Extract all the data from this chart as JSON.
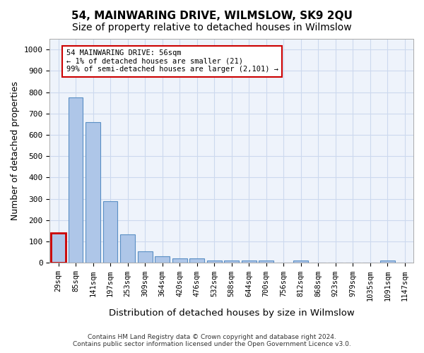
{
  "title": "54, MAINWARING DRIVE, WILMSLOW, SK9 2QU",
  "subtitle": "Size of property relative to detached houses in Wilmslow",
  "xlabel": "Distribution of detached houses by size in Wilmslow",
  "ylabel": "Number of detached properties",
  "footer_line1": "Contains HM Land Registry data © Crown copyright and database right 2024.",
  "footer_line2": "Contains public sector information licensed under the Open Government Licence v3.0.",
  "bins": [
    "29sqm",
    "85sqm",
    "141sqm",
    "197sqm",
    "253sqm",
    "309sqm",
    "364sqm",
    "420sqm",
    "476sqm",
    "532sqm",
    "588sqm",
    "644sqm",
    "700sqm",
    "756sqm",
    "812sqm",
    "868sqm",
    "923sqm",
    "979sqm",
    "1035sqm",
    "1091sqm",
    "1147sqm"
  ],
  "values": [
    140,
    775,
    660,
    290,
    135,
    55,
    30,
    20,
    20,
    10,
    10,
    10,
    10,
    0,
    10,
    0,
    0,
    0,
    0,
    10,
    0
  ],
  "bar_color": "#aec6e8",
  "bar_edge_color": "#5a8fc4",
  "highlight_bar_index": 0,
  "highlight_bar_edge_color": "#cc0000",
  "annotation_box_text": "54 MAINWARING DRIVE: 56sqm\n← 1% of detached houses are smaller (21)\n99% of semi-detached houses are larger (2,101) →",
  "ylim": [
    0,
    1050
  ],
  "grid_color": "#ccd9ee",
  "bg_color": "#eef3fb",
  "title_fontsize": 11,
  "subtitle_fontsize": 10,
  "tick_fontsize": 7.5,
  "ylabel_fontsize": 9,
  "xlabel_fontsize": 9.5,
  "footer_fontsize": 6.5
}
